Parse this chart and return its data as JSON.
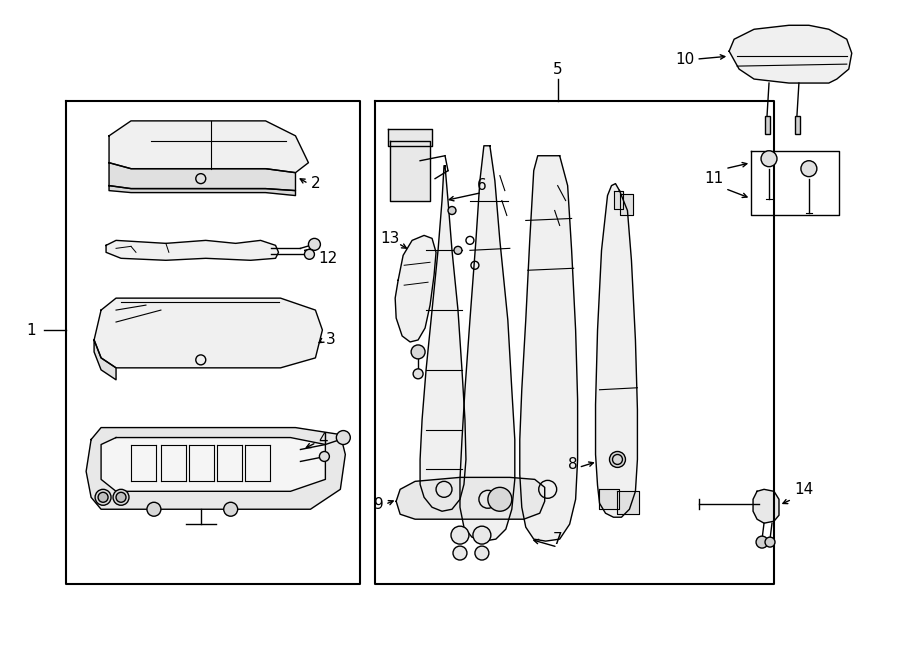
{
  "bg_color": "#ffffff",
  "line_color": "#000000",
  "fig_w": 9.0,
  "fig_h": 6.61,
  "dpi": 100,
  "lw": 1.0,
  "fontsize": 11
}
